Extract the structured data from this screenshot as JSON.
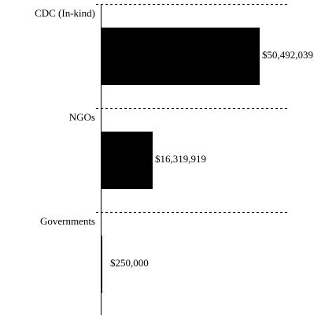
{
  "chart_data": {
    "type": "hbar",
    "categories": [
      "CDC (In-kind)",
      "NGOs",
      "Governments"
    ],
    "values": [
      50492039,
      16319919,
      250000
    ],
    "value_labels": [
      "$50,492,039",
      "$16,319,919",
      "$250,000"
    ],
    "color": "#000000"
  }
}
